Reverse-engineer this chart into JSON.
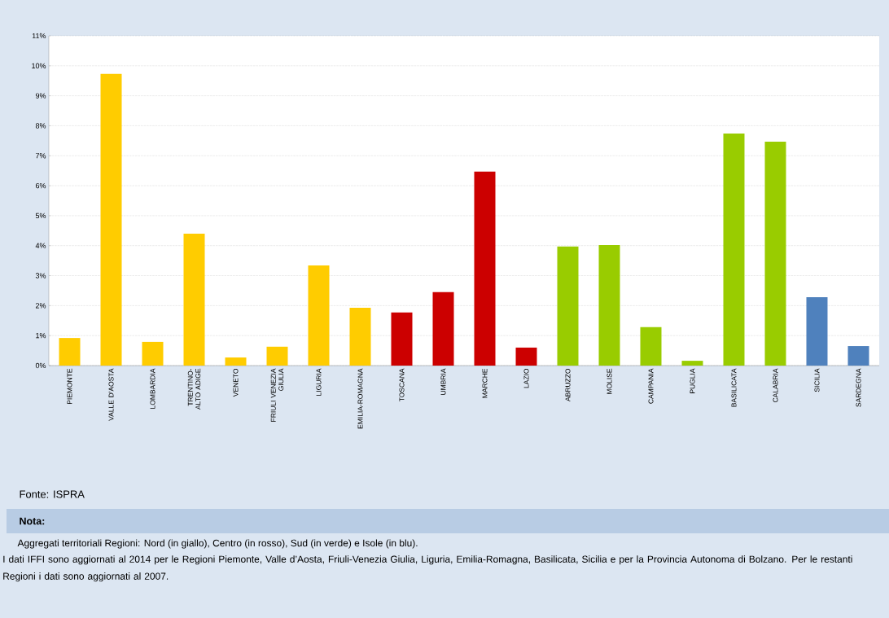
{
  "chart_data": {
    "type": "bar",
    "categories": [
      "PIEMONTE",
      "VALLE D'AOSTA",
      "LOMBARDIA",
      "TRENTINO-ALTO ADIGE",
      "VENETO",
      "FRIULI VENEZIA GIULIA",
      "LIGURIA",
      "EMILIA-ROMAGNA",
      "TOSCANA",
      "UMBRIA",
      "MARCHE",
      "LAZIO",
      "ABRUZZO",
      "MOLISE",
      "CAMPANIA",
      "PUGLIA",
      "BASILICATA",
      "CALABRIA",
      "SICILIA",
      "SARDEGNA"
    ],
    "values": [
      0.92,
      9.73,
      0.79,
      4.4,
      0.27,
      0.63,
      3.34,
      1.93,
      1.77,
      2.45,
      6.47,
      0.6,
      3.97,
      4.02,
      1.28,
      0.16,
      7.74,
      7.47,
      2.28,
      0.65
    ],
    "colors": [
      "#ffcc00",
      "#ffcc00",
      "#ffcc00",
      "#ffcc00",
      "#ffcc00",
      "#ffcc00",
      "#ffcc00",
      "#ffcc00",
      "#cc0000",
      "#cc0000",
      "#cc0000",
      "#cc0000",
      "#99cc00",
      "#99cc00",
      "#99cc00",
      "#99cc00",
      "#99cc00",
      "#99cc00",
      "#4f81bd",
      "#4f81bd"
    ],
    "ylim": [
      0,
      11
    ],
    "yticks": [
      {
        "value": 0,
        "label": "0%"
      },
      {
        "value": 1,
        "label": "1%"
      },
      {
        "value": 2,
        "label": "2%"
      },
      {
        "value": 3,
        "label": "3%"
      },
      {
        "value": 4,
        "label": "4%"
      },
      {
        "value": 5,
        "label": "5%"
      },
      {
        "value": 6,
        "label": "6%"
      },
      {
        "value": 7,
        "label": "7%"
      },
      {
        "value": 8,
        "label": "8%"
      },
      {
        "value": 9,
        "label": "9%"
      },
      {
        "value": 10,
        "label": "10%"
      },
      {
        "value": 11,
        "label": "11%"
      }
    ],
    "grid": "y",
    "annotations": [
      "Fonte: ISPRA",
      "Nota:",
      "Aggregati territoriali Regioni: Nord (in giallo), Centro (in rosso), Sud (in verde) e Isole (in blu).",
      "I dati IFFI sono aggiornati al 2014 per le Regioni Piemonte, Valle d’Aosta, Friuli-Venezia Giulia, Liguria, Emilia-Romagna, Basilicata, Sicilia e per la Provincia Autonoma di Bolzano. Per le restanti Regioni i dati sono aggiornati al 2007."
    ]
  }
}
